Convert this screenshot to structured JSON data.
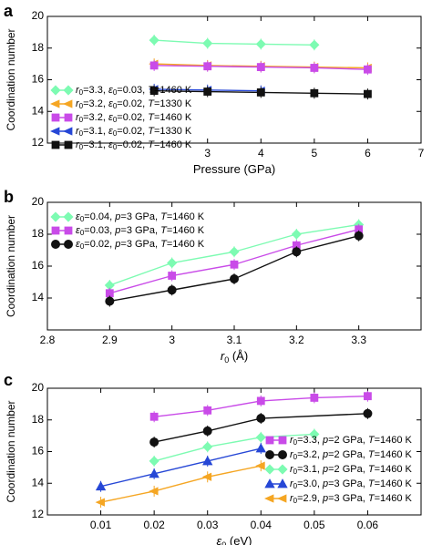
{
  "chart_data": [
    {
      "type": "line",
      "panel_label": "a",
      "xlabel": "Pressure (GPa)",
      "ylabel": "Coordination number",
      "xlim": [
        0,
        7
      ],
      "ylim": [
        12,
        20
      ],
      "xticks": [
        3,
        4,
        5,
        6,
        7
      ],
      "yticks": [
        12,
        14,
        16,
        18,
        20
      ],
      "legend_position": "bottom-left",
      "series": [
        {
          "name": "r0=3.3, ε0=0.03, T=1460 K",
          "legend": {
            "r": "3.3",
            "e": "0.03",
            "p": "",
            "T": "1460"
          },
          "color": "#7dfbb2",
          "marker": "diamond",
          "x": [
            2,
            3,
            4,
            5
          ],
          "y": [
            18.5,
            18.3,
            18.25,
            18.2
          ]
        },
        {
          "name": "r0=3.2, ε0=0.02, T=1330 K",
          "legend": {
            "r": "3.2",
            "e": "0.02",
            "p": "",
            "T": "1330"
          },
          "color": "#f5a623",
          "marker": "tri-left",
          "x": [
            2,
            3,
            4,
            5,
            6
          ],
          "y": [
            17.0,
            16.9,
            16.85,
            16.8,
            16.75
          ]
        },
        {
          "name": "r0=3.2, ε0=0.02, T=1460 K",
          "legend": {
            "r": "3.2",
            "e": "0.02",
            "p": "",
            "T": "1460"
          },
          "color": "#c94be8",
          "marker": "square",
          "x": [
            2,
            3,
            4,
            5,
            6
          ],
          "y": [
            16.9,
            16.85,
            16.8,
            16.75,
            16.65
          ]
        },
        {
          "name": "r0=3.1, ε0=0.02, T=1330 K",
          "legend": {
            "r": "3.1",
            "e": "0.02",
            "p": "",
            "T": "1330"
          },
          "color": "#2647d6",
          "marker": "tri-left",
          "x": [
            2,
            3,
            4
          ],
          "y": [
            15.4,
            15.35,
            15.3
          ]
        },
        {
          "name": "r0=3.1, ε0=0.02, T=1460 K",
          "legend": {
            "r": "3.1",
            "e": "0.02",
            "p": "",
            "T": "1460"
          },
          "color": "#111111",
          "marker": "square",
          "x": [
            2,
            3,
            4,
            5,
            6
          ],
          "y": [
            15.3,
            15.25,
            15.2,
            15.15,
            15.1
          ]
        }
      ]
    },
    {
      "type": "line",
      "panel_label": "b",
      "xlabel": "r0 (Å)",
      "ylabel": "Coordination number",
      "xlim": [
        2.8,
        3.4
      ],
      "ylim": [
        12,
        20
      ],
      "xticks": [
        2.8,
        2.9,
        3,
        3.1,
        3.2,
        3.3
      ],
      "yticks": [
        14,
        16,
        18,
        20
      ],
      "legend_position": "top-left",
      "series": [
        {
          "name": "ε0=0.04, p=3 GPa, T=1460 K",
          "legend": {
            "r": "",
            "e": "0.04",
            "p": "3",
            "T": "1460"
          },
          "color": "#7dfbb2",
          "marker": "diamond",
          "x": [
            2.9,
            3.0,
            3.1,
            3.2,
            3.3
          ],
          "y": [
            14.8,
            16.2,
            16.9,
            18.0,
            18.6
          ]
        },
        {
          "name": "ε0=0.03, p=3 GPa, T=1460 K",
          "legend": {
            "r": "",
            "e": "0.03",
            "p": "3",
            "T": "1460"
          },
          "color": "#c94be8",
          "marker": "square",
          "x": [
            2.9,
            3.0,
            3.1,
            3.2,
            3.3
          ],
          "y": [
            14.3,
            15.4,
            16.1,
            17.3,
            18.3
          ]
        },
        {
          "name": "ε0=0.02, p=3 GPa, T=1460 K",
          "legend": {
            "r": "",
            "e": "0.02",
            "p": "3",
            "T": "1460"
          },
          "color": "#111111",
          "marker": "circle",
          "x": [
            2.9,
            3.0,
            3.1,
            3.2,
            3.3
          ],
          "y": [
            13.8,
            14.5,
            15.2,
            16.9,
            17.9
          ]
        }
      ]
    },
    {
      "type": "line",
      "panel_label": "c",
      "xlabel": "ε0 (eV)",
      "ylabel": "Coordination number",
      "xlim": [
        0,
        0.07
      ],
      "ylim": [
        12,
        20
      ],
      "xticks": [
        0.01,
        0.02,
        0.03,
        0.04,
        0.05,
        0.06
      ],
      "yticks": [
        12,
        14,
        16,
        18,
        20
      ],
      "legend_position": "bottom-right",
      "series": [
        {
          "name": "r0=3.3, p=2 GPa, T=1460 K",
          "legend": {
            "r": "3.3",
            "e": "",
            "p": "2",
            "T": "1460"
          },
          "color": "#c94be8",
          "marker": "square",
          "x": [
            0.02,
            0.03,
            0.04,
            0.05,
            0.06
          ],
          "y": [
            18.2,
            18.6,
            19.2,
            19.4,
            19.5
          ]
        },
        {
          "name": "r0=3.2, p=2 GPa, T=1460 K",
          "legend": {
            "r": "3.2",
            "e": "",
            "p": "2",
            "T": "1460"
          },
          "color": "#111111",
          "marker": "circle",
          "x": [
            0.02,
            0.03,
            0.04,
            0.06
          ],
          "y": [
            16.6,
            17.3,
            18.1,
            18.4
          ]
        },
        {
          "name": "r0=3.1, p=2 GPa, T=1460 K",
          "legend": {
            "r": "3.1",
            "e": "",
            "p": "2",
            "T": "1460"
          },
          "color": "#7dfbb2",
          "marker": "diamond",
          "x": [
            0.02,
            0.03,
            0.04,
            0.05
          ],
          "y": [
            15.4,
            16.3,
            16.9,
            17.1
          ]
        },
        {
          "name": "r0=3.0, p=3 GPa, T=1460 K",
          "legend": {
            "r": "3.0",
            "e": "",
            "p": "3",
            "T": "1460"
          },
          "color": "#2647d6",
          "marker": "triangle",
          "x": [
            0.01,
            0.02,
            0.03,
            0.04
          ],
          "y": [
            13.8,
            14.6,
            15.4,
            16.2
          ]
        },
        {
          "name": "r0=2.9, p=3 GPa, T=1460 K",
          "legend": {
            "r": "2.9",
            "e": "",
            "p": "3",
            "T": "1460"
          },
          "color": "#f5a623",
          "marker": "tri-left",
          "x": [
            0.01,
            0.02,
            0.03,
            0.04
          ],
          "y": [
            12.8,
            13.5,
            14.4,
            15.1
          ]
        }
      ]
    }
  ]
}
